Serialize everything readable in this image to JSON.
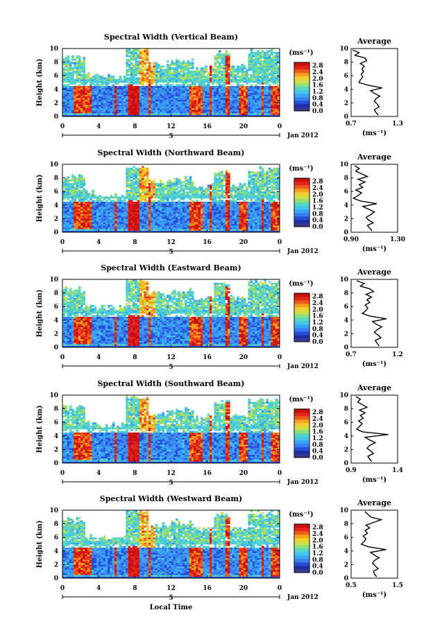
{
  "colors": {
    "scale": [
      "#3a3a8c",
      "#1e2ea8",
      "#2450d8",
      "#3a7ef0",
      "#39a6f4",
      "#45c8e8",
      "#5ad6c0",
      "#8ee07a",
      "#cde04a",
      "#f0d030",
      "#f5a020",
      "#ee5a1a",
      "#e2261a",
      "#c81010"
    ],
    "background": "#ffffff"
  },
  "figure": {
    "xlabel": "Local Time",
    "date_label": "Jan 2012",
    "day_label": "5",
    "height_label": "Height (km)",
    "colorbar_unit": "(ms⁻¹)",
    "colorbar_ticks": [
      "2.8",
      "2.4",
      "2.0",
      "1.6",
      "1.2",
      "0.8",
      "0.4",
      "0.0"
    ],
    "avg_title": "Average",
    "avg_unit": "(ms⁻¹)"
  },
  "chart_data": [
    {
      "type": "heatmap",
      "title": "Spectral Width (Vertical Beam)",
      "xlabel": "",
      "ylabel": "Height (km)",
      "x_ticks": [
        "0",
        "4",
        "8",
        "12",
        "16",
        "20",
        "0"
      ],
      "y_ticks": [
        "0",
        "2",
        "4",
        "6",
        "8",
        "10"
      ],
      "xlim": [
        0,
        24
      ],
      "ylim": [
        0,
        10
      ],
      "colorbar": {
        "range": [
          0,
          3.0
        ],
        "unit": "(ms⁻¹)"
      },
      "average_profile": {
        "title": "Average",
        "xlim": [
          0.7,
          1.3
        ],
        "x_ticks": [
          "0.7",
          "1.3"
        ],
        "ylim": [
          0,
          10
        ],
        "heights": [
          0.2,
          0.6,
          1.0,
          1.4,
          1.8,
          2.2,
          2.6,
          3.0,
          3.4,
          3.8,
          4.2,
          4.6,
          5.0,
          5.4,
          5.8,
          6.2,
          6.6,
          7.0,
          7.4,
          7.8,
          8.2,
          8.6,
          9.0,
          9.4,
          9.8
        ],
        "values": [
          1.05,
          1.02,
          1.0,
          1.06,
          1.04,
          1.0,
          1.02,
          1.07,
          1.0,
          0.95,
          1.1,
          0.92,
          0.8,
          0.82,
          0.85,
          0.83,
          0.86,
          0.84,
          0.87,
          0.82,
          0.9,
          0.88,
          0.75,
          0.8,
          0.72
        ]
      }
    },
    {
      "type": "heatmap",
      "title": "Spectral Width (Northward Beam)",
      "xlabel": "",
      "ylabel": "Height (km)",
      "x_ticks": [
        "0",
        "4",
        "8",
        "12",
        "16",
        "20",
        "0"
      ],
      "y_ticks": [
        "0",
        "2",
        "4",
        "6",
        "8",
        "10"
      ],
      "xlim": [
        0,
        24
      ],
      "ylim": [
        0,
        10
      ],
      "colorbar": {
        "range": [
          0,
          3.0
        ],
        "unit": "(ms⁻¹)"
      },
      "average_profile": {
        "title": "Average",
        "xlim": [
          0.9,
          1.3
        ],
        "x_ticks": [
          "0.90",
          "1.30"
        ],
        "ylim": [
          0,
          10
        ],
        "heights": [
          0.2,
          0.6,
          1.0,
          1.4,
          1.8,
          2.2,
          2.6,
          3.0,
          3.4,
          3.8,
          4.2,
          4.6,
          5.0,
          5.4,
          5.8,
          6.2,
          6.6,
          7.0,
          7.4,
          7.8,
          8.2,
          8.6,
          9.0,
          9.4,
          9.8
        ],
        "values": [
          1.08,
          1.06,
          1.04,
          1.09,
          1.05,
          1.03,
          1.07,
          1.1,
          1.05,
          1.0,
          1.12,
          0.98,
          0.92,
          0.96,
          0.99,
          0.94,
          1.0,
          0.97,
          1.02,
          0.96,
          1.04,
          0.99,
          0.94,
          0.97,
          0.93
        ]
      }
    },
    {
      "type": "heatmap",
      "title": "Spectral Width (Eastward Beam)",
      "xlabel": "",
      "ylabel": "Height (km)",
      "x_ticks": [
        "0",
        "4",
        "8",
        "12",
        "16",
        "20",
        "0"
      ],
      "y_ticks": [
        "0",
        "2",
        "4",
        "6",
        "8",
        "10"
      ],
      "xlim": [
        0,
        24
      ],
      "ylim": [
        0,
        10
      ],
      "colorbar": {
        "range": [
          0,
          3.0
        ],
        "unit": "(ms⁻¹)"
      },
      "average_profile": {
        "title": "Average",
        "xlim": [
          0.7,
          1.2
        ],
        "x_ticks": [
          "0.7",
          "1.2"
        ],
        "ylim": [
          0,
          10
        ],
        "heights": [
          0.2,
          0.6,
          1.0,
          1.4,
          1.8,
          2.2,
          2.6,
          3.0,
          3.4,
          3.8,
          4.2,
          4.6,
          5.0,
          5.4,
          5.8,
          6.2,
          6.6,
          7.0,
          7.4,
          7.8,
          8.2,
          8.6,
          9.0,
          9.4,
          9.8
        ],
        "values": [
          1.0,
          0.98,
          0.96,
          1.02,
          0.99,
          0.95,
          0.98,
          1.03,
          0.97,
          0.93,
          1.08,
          0.9,
          0.82,
          0.86,
          0.88,
          0.85,
          0.9,
          0.87,
          0.92,
          0.86,
          0.94,
          0.9,
          0.8,
          0.84,
          0.76
        ]
      }
    },
    {
      "type": "heatmap",
      "title": "Spectral Width (Southward Beam)",
      "xlabel": "",
      "ylabel": "Height (km)",
      "x_ticks": [
        "0",
        "4",
        "8",
        "12",
        "16",
        "20",
        "0"
      ],
      "y_ticks": [
        "0",
        "2",
        "4",
        "6",
        "8",
        "10"
      ],
      "xlim": [
        0,
        24
      ],
      "ylim": [
        0,
        10
      ],
      "colorbar": {
        "range": [
          0,
          3.0
        ],
        "unit": "(ms⁻¹)"
      },
      "average_profile": {
        "title": "Average",
        "xlim": [
          0.9,
          1.4
        ],
        "x_ticks": [
          "0.9",
          "1.4"
        ],
        "ylim": [
          0,
          10
        ],
        "heights": [
          0.2,
          0.6,
          1.0,
          1.4,
          1.8,
          2.2,
          2.6,
          3.0,
          3.4,
          3.8,
          4.2,
          4.6,
          5.0,
          5.4,
          5.8,
          6.2,
          6.6,
          7.0,
          7.4,
          7.8,
          8.2,
          8.6,
          9.0,
          9.4,
          9.8
        ],
        "values": [
          1.12,
          1.1,
          1.08,
          1.14,
          1.11,
          1.07,
          1.1,
          1.16,
          1.1,
          1.05,
          1.3,
          1.02,
          0.96,
          0.99,
          1.02,
          0.98,
          1.03,
          1.0,
          1.05,
          0.99,
          1.07,
          1.02,
          0.97,
          1.0,
          0.95
        ]
      }
    },
    {
      "type": "heatmap",
      "title": "Spectral Width (Westward Beam)",
      "xlabel": "Local Time",
      "ylabel": "Height (km)",
      "x_ticks": [
        "0",
        "4",
        "8",
        "12",
        "16",
        "20",
        "0"
      ],
      "y_ticks": [
        "0",
        "2",
        "4",
        "6",
        "8",
        "10"
      ],
      "xlim": [
        0,
        24
      ],
      "ylim": [
        0,
        10
      ],
      "colorbar": {
        "range": [
          0,
          3.0
        ],
        "unit": "(ms⁻¹)"
      },
      "average_profile": {
        "title": "Average",
        "xlim": [
          0.5,
          1.5
        ],
        "x_ticks": [
          "0.5",
          "1.5"
        ],
        "ylim": [
          0,
          10
        ],
        "heights": [
          0.2,
          0.6,
          1.0,
          1.4,
          1.8,
          2.2,
          2.6,
          3.0,
          3.4,
          3.8,
          4.2,
          4.6,
          5.0,
          5.4,
          5.8,
          6.2,
          6.6,
          7.0,
          7.4,
          7.8,
          8.2,
          8.6,
          9.0,
          9.4,
          9.8
        ],
        "values": [
          1.05,
          1.0,
          0.98,
          1.08,
          1.02,
          0.96,
          1.0,
          1.1,
          1.0,
          0.92,
          1.25,
          0.88,
          0.72,
          0.78,
          0.82,
          0.76,
          0.85,
          0.8,
          0.9,
          0.82,
          0.98,
          1.15,
          0.92,
          0.86,
          0.8
        ]
      }
    }
  ]
}
